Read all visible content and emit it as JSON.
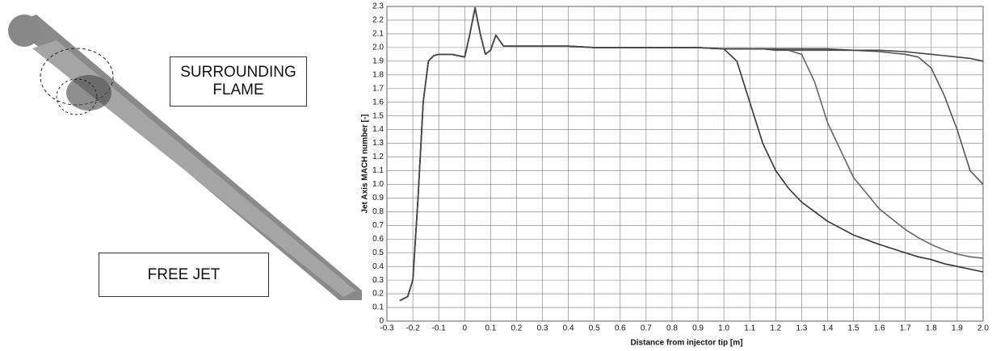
{
  "figure_labels": [
    "SURROUNDING FLAME",
    "FREE JET"
  ],
  "chart_data": {
    "type": "line",
    "x_label": "Distance from injector tip [m]",
    "y_label": "Jet Axis MACH number [-]",
    "x": [
      -0.25,
      -0.22,
      -0.2,
      -0.18,
      -0.16,
      -0.14,
      -0.12,
      -0.1,
      -0.05,
      0,
      0.02,
      0.04,
      0.06,
      0.08,
      0.1,
      0.12,
      0.15,
      0.2,
      0.3,
      0.4,
      0.5,
      0.6,
      0.7,
      0.8,
      0.9,
      1.0,
      1.05,
      1.1,
      1.15,
      1.2,
      1.25,
      1.3,
      1.35,
      1.4,
      1.5,
      1.6,
      1.7,
      1.75,
      1.8,
      1.85,
      1.9,
      1.95,
      2.0
    ],
    "series": [
      {
        "color": "#333333",
        "values": [
          0.15,
          0.18,
          0.3,
          0.9,
          1.6,
          1.9,
          1.94,
          1.95,
          1.95,
          1.93,
          2.1,
          2.29,
          2.1,
          1.95,
          1.98,
          2.09,
          2.01,
          2.01,
          2.01,
          2.01,
          2.0,
          2.0,
          2.0,
          2.0,
          2.0,
          1.99,
          1.9,
          1.6,
          1.3,
          1.1,
          0.97,
          0.87,
          0.8,
          0.73,
          0.63,
          0.56,
          0.5,
          0.47,
          0.45,
          0.42,
          0.4,
          0.38,
          0.36
        ]
      },
      {
        "color": "#666666",
        "values": [
          0.15,
          0.18,
          0.3,
          0.9,
          1.6,
          1.9,
          1.94,
          1.95,
          1.95,
          1.93,
          2.1,
          2.29,
          2.1,
          1.95,
          1.98,
          2.09,
          2.01,
          2.01,
          2.01,
          2.01,
          2.0,
          2.0,
          2.0,
          2.0,
          2.0,
          1.99,
          1.99,
          1.99,
          1.99,
          1.99,
          1.98,
          1.95,
          1.75,
          1.45,
          1.05,
          0.82,
          0.67,
          0.61,
          0.56,
          0.52,
          0.49,
          0.47,
          0.46
        ]
      },
      {
        "color": "#555555",
        "values": [
          0.15,
          0.18,
          0.3,
          0.9,
          1.6,
          1.9,
          1.94,
          1.95,
          1.95,
          1.93,
          2.1,
          2.29,
          2.1,
          1.95,
          1.98,
          2.09,
          2.01,
          2.01,
          2.01,
          2.01,
          2.0,
          2.0,
          2.0,
          2.0,
          2.0,
          1.99,
          1.99,
          1.99,
          1.99,
          1.98,
          1.98,
          1.98,
          1.98,
          1.98,
          1.98,
          1.97,
          1.95,
          1.93,
          1.85,
          1.65,
          1.4,
          1.1,
          1.0
        ]
      },
      {
        "color": "#444444",
        "values": [
          0.15,
          0.18,
          0.3,
          0.9,
          1.6,
          1.9,
          1.94,
          1.95,
          1.95,
          1.93,
          2.1,
          2.29,
          2.1,
          1.95,
          1.98,
          2.09,
          2.01,
          2.01,
          2.01,
          2.01,
          2.0,
          2.0,
          2.0,
          2.0,
          2.0,
          1.99,
          1.99,
          1.99,
          1.99,
          1.99,
          1.99,
          1.99,
          1.99,
          1.99,
          1.98,
          1.98,
          1.97,
          1.96,
          1.95,
          1.94,
          1.93,
          1.92,
          1.9
        ]
      }
    ],
    "xlim": [
      -0.3,
      2.0
    ],
    "xticks": [
      -0.3,
      -0.2,
      -0.1,
      0,
      0.1,
      0.2,
      0.3,
      0.4,
      0.5,
      0.6,
      0.7,
      0.8,
      0.9,
      {
        "value": 1,
        "label": "1.0"
      },
      1.1,
      1.2,
      1.3,
      1.4,
      1.5,
      1.6,
      1.7,
      1.8,
      1.9,
      {
        "value": 2,
        "label": "2.0"
      }
    ],
    "ylim": [
      0,
      2.3
    ],
    "yticks": [
      0,
      0.1,
      0.2,
      0.3,
      0.4,
      0.5,
      0.6,
      0.7,
      0.8,
      0.9,
      {
        "value": 1,
        "label": "1.0"
      },
      1.1,
      1.2,
      1.3,
      1.4,
      1.5,
      1.6,
      1.7,
      1.8,
      1.9,
      {
        "value": 2,
        "label": "2.0"
      },
      2.1,
      2.2,
      2.3
    ],
    "grid": true
  }
}
